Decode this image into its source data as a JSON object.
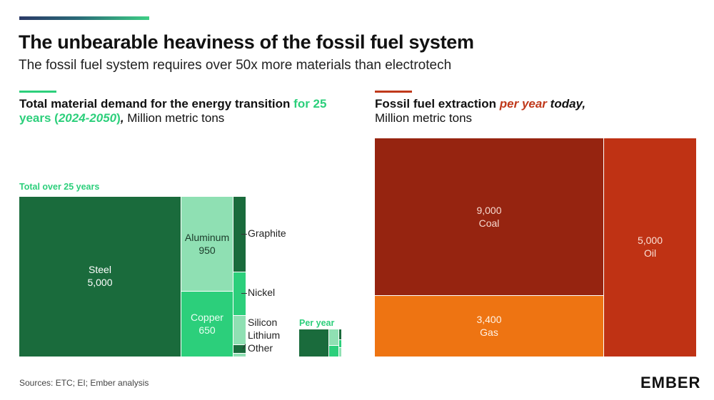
{
  "header": {
    "title": "The unbearable heaviness of the fossil fuel system",
    "subtitle": "The fossil fuel system requires over 50x more materials than electrotech"
  },
  "left_panel": {
    "title_part1": "Total material demand for the energy transition ",
    "title_part2": "for 25 years (",
    "title_part3": "2024-2050",
    "title_part4": ")",
    "title_part5": ",",
    "title_part6": " Million metric tons",
    "total_label": "Total over 25 years",
    "peryear_label": "Per year"
  },
  "right_panel": {
    "title_part1": "Fossil fuel extraction ",
    "title_part2": "per year",
    "title_part3": " today,",
    "title_part4": "Million metric tons"
  },
  "footer": {
    "sources": "Sources: ETC; EI; Ember analysis",
    "logo": "EMBER"
  },
  "colors": {
    "dark_green": "#1a6b3c",
    "light_green": "#8fe0b3",
    "mid_green": "#2ccf7b",
    "coal": "#962410",
    "oil": "#bf3214",
    "gas": "#ee7412"
  },
  "chart_data": [
    {
      "type": "treemap",
      "title": "Total material demand for the energy transition for 25 years (2024-2050), Million metric tons",
      "unit": "Million metric tons",
      "items": [
        {
          "name": "Steel",
          "value": 5000,
          "value_label": "5,000"
        },
        {
          "name": "Aluminum",
          "value": 950,
          "value_label": "950"
        },
        {
          "name": "Copper",
          "value": 650,
          "value_label": "650"
        },
        {
          "name": "Graphite",
          "value": null
        },
        {
          "name": "Nickel",
          "value": null
        },
        {
          "name": "Silicon",
          "value": null
        },
        {
          "name": "Lithium",
          "value": null
        },
        {
          "name": "Other",
          "value": null
        }
      ]
    },
    {
      "type": "treemap",
      "title": "Fossil fuel extraction per year today, Million metric tons",
      "unit": "Million metric tons",
      "items": [
        {
          "name": "Coal",
          "value": 9000,
          "value_label": "9,000"
        },
        {
          "name": "Oil",
          "value": 5000,
          "value_label": "5,000"
        },
        {
          "name": "Gas",
          "value": 3400,
          "value_label": "3,400"
        }
      ]
    }
  ]
}
